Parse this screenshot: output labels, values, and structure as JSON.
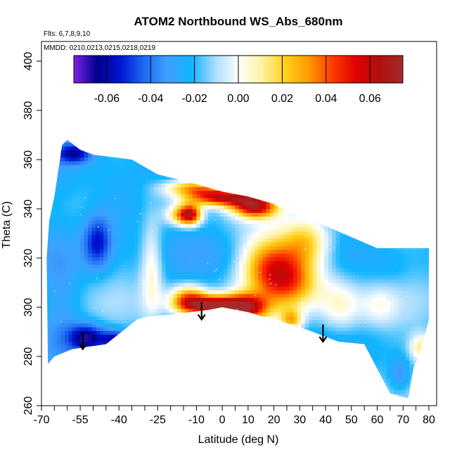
{
  "chart_data": {
    "type": "heatmap",
    "title": "ATOM2 Northbound WS_Abs_680nm",
    "annotations": [
      "Flts: 6,7,8,9,10",
      "MMDD: 0210,0213,0215,0218,0219"
    ],
    "xlabel": "Latitude (deg N)",
    "ylabel": "Theta (C)",
    "xlim": [
      -70,
      83
    ],
    "ylim": [
      260,
      408
    ],
    "x_ticks": [
      -70,
      -55,
      -40,
      -25,
      -10,
      0,
      10,
      20,
      30,
      40,
      50,
      60,
      70,
      80
    ],
    "x_tick_labels": [
      "-70",
      "-55",
      "-40",
      "-25",
      "-10",
      "0",
      "10",
      "20",
      "30",
      "40",
      "50",
      "60",
      "70",
      "80"
    ],
    "x_minor_ticks": [
      -65,
      -60,
      -50,
      -45,
      -35,
      -30,
      -20,
      -15,
      -5,
      5,
      15,
      25,
      35,
      45,
      55,
      65,
      75
    ],
    "y_ticks": [
      260,
      280,
      300,
      320,
      340,
      360,
      380,
      400
    ],
    "y_tick_labels": [
      "260",
      "280",
      "300",
      "320",
      "340",
      "360",
      "380",
      "400"
    ],
    "colorbar": {
      "range": [
        -0.075,
        0.075
      ],
      "ticks": [
        -0.06,
        -0.04,
        -0.02,
        0.0,
        0.02,
        0.04,
        0.06
      ],
      "tick_labels": [
        "-0.06",
        "-0.04",
        "-0.02",
        "0.00",
        "0.02",
        "0.04",
        "0.06"
      ],
      "colors": [
        "#7b22e6",
        "#00008b",
        "#0015d4",
        "#1e6bf0",
        "#3ea0ff",
        "#10b4ff",
        "#a8dcff",
        "#ffffff",
        "#fff2a0",
        "#ffd11a",
        "#ff9900",
        "#ff3b00",
        "#e00000",
        "#b01010",
        "#a52a2a"
      ]
    },
    "outline": [
      [
        -67.5,
        277
      ],
      [
        -65,
        280
      ],
      [
        -58,
        283
      ],
      [
        -45,
        285
      ],
      [
        -33,
        295
      ],
      [
        -30,
        296
      ],
      [
        -20,
        297
      ],
      [
        -5,
        299
      ],
      [
        0,
        300
      ],
      [
        10,
        298
      ],
      [
        20,
        295
      ],
      [
        30,
        292
      ],
      [
        40,
        288
      ],
      [
        45,
        286
      ],
      [
        55,
        285
      ],
      [
        60,
        275
      ],
      [
        65,
        265
      ],
      [
        72,
        263
      ],
      [
        74,
        275
      ],
      [
        77,
        283
      ],
      [
        80,
        295
      ],
      [
        80,
        324
      ],
      [
        60,
        324
      ],
      [
        40,
        333
      ],
      [
        30,
        336
      ],
      [
        20,
        342
      ],
      [
        10,
        345
      ],
      [
        0,
        347
      ],
      [
        -10,
        350
      ],
      [
        -25,
        354
      ],
      [
        -35,
        360
      ],
      [
        -50,
        362
      ],
      [
        -55,
        364
      ],
      [
        -60,
        368
      ],
      [
        -62,
        366
      ],
      [
        -65,
        345
      ],
      [
        -67,
        335
      ],
      [
        -68,
        320
      ]
    ],
    "anomalies": [
      {
        "lat": -5,
        "theta": 300,
        "value": 0.065,
        "sx": 8,
        "sy": 3
      },
      {
        "lat": 8,
        "theta": 299,
        "value": 0.05,
        "sx": 6,
        "sy": 4
      },
      {
        "lat": -14,
        "theta": 303,
        "value": 0.03,
        "sx": 5,
        "sy": 4
      },
      {
        "lat": 25,
        "theta": 310,
        "value": 0.035,
        "sx": 9,
        "sy": 8
      },
      {
        "lat": 17,
        "theta": 318,
        "value": 0.02,
        "sx": 8,
        "sy": 8
      },
      {
        "lat": 32,
        "theta": 326,
        "value": 0.02,
        "sx": 7,
        "sy": 7
      },
      {
        "lat": 0,
        "theta": 344,
        "value": 0.055,
        "sx": 10,
        "sy": 2.5
      },
      {
        "lat": -12,
        "theta": 348,
        "value": 0.03,
        "sx": 8,
        "sy": 2.5
      },
      {
        "lat": 12,
        "theta": 340,
        "value": 0.05,
        "sx": 6,
        "sy": 3
      },
      {
        "lat": -13,
        "theta": 337,
        "value": 0.045,
        "sx": 3,
        "sy": 3
      },
      {
        "lat": -17,
        "theta": 337,
        "value": 0.02,
        "sx": 4,
        "sy": 3
      },
      {
        "lat": 26,
        "theta": 294,
        "value": 0.02,
        "sx": 3,
        "sy": 3
      },
      {
        "lat": 76,
        "theta": 283,
        "value": 0.01,
        "sx": 3,
        "sy": 4
      },
      {
        "lat": -53,
        "theta": 287,
        "value": -0.065,
        "sx": 5,
        "sy": 4
      },
      {
        "lat": -49,
        "theta": 326,
        "value": -0.055,
        "sx": 4,
        "sy": 8
      },
      {
        "lat": -58,
        "theta": 362,
        "value": -0.06,
        "sx": 5,
        "sy": 3
      },
      {
        "lat": -42,
        "theta": 286,
        "value": -0.06,
        "sx": 4,
        "sy": 3
      },
      {
        "lat": -40,
        "theta": 340,
        "value": -0.035,
        "sx": 8,
        "sy": 10
      },
      {
        "lat": -62,
        "theta": 300,
        "value": -0.03,
        "sx": 5,
        "sy": 18
      },
      {
        "lat": -28,
        "theta": 315,
        "value": 0.005,
        "sx": 3,
        "sy": 14
      },
      {
        "lat": 45,
        "theta": 300,
        "value": 0.005,
        "sx": 6,
        "sy": 8
      },
      {
        "lat": 60,
        "theta": 300,
        "value": -0.005,
        "sx": 5,
        "sy": 6
      },
      {
        "lat": 68,
        "theta": 272,
        "value": -0.04,
        "sx": 3,
        "sy": 5
      },
      {
        "lat": 0,
        "theta": 320,
        "value": -0.025,
        "sx": 8,
        "sy": 6
      },
      {
        "lat": 65,
        "theta": 315,
        "value": -0.025,
        "sx": 6,
        "sy": 6
      }
    ],
    "background_value": -0.02,
    "arrows": [
      {
        "lat": -54,
        "theta": 290,
        "length": 7
      },
      {
        "lat": -8,
        "theta": 302,
        "length": 7
      },
      {
        "lat": 39,
        "theta": 293,
        "length": 7
      }
    ]
  }
}
